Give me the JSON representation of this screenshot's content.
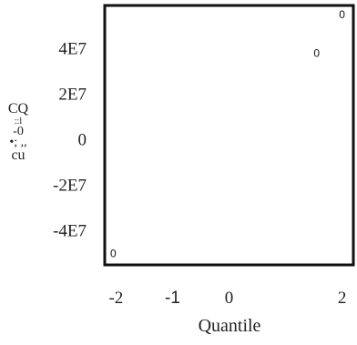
{
  "chart_data": {
    "type": "scatter",
    "title": "",
    "xlabel": "Quantile",
    "ylabel": "CQ -0 cu",
    "xlim": [
      -2.2,
      2.2
    ],
    "ylim": [
      -55000000,
      59000000
    ],
    "grid": false,
    "x_ticks": [
      {
        "value": -2,
        "label": "-2"
      },
      {
        "value": -1,
        "label": "-1"
      },
      {
        "value": 0,
        "label": "0"
      },
      {
        "value": 2,
        "label": "2"
      }
    ],
    "y_ticks": [
      {
        "value": 40000000,
        "label": "4E7"
      },
      {
        "value": 20000000,
        "label": "2E7"
      },
      {
        "value": 0,
        "label": "0"
      },
      {
        "value": -20000000,
        "label": "-2E7"
      },
      {
        "value": -40000000,
        "label": "-4E7"
      }
    ],
    "points": [
      {
        "x": -2.05,
        "y": -50000000,
        "label": "0"
      },
      {
        "x": 1.55,
        "y": 38000000,
        "label": "0"
      },
      {
        "x": 2.0,
        "y": 55000000,
        "label": "0"
      }
    ]
  }
}
